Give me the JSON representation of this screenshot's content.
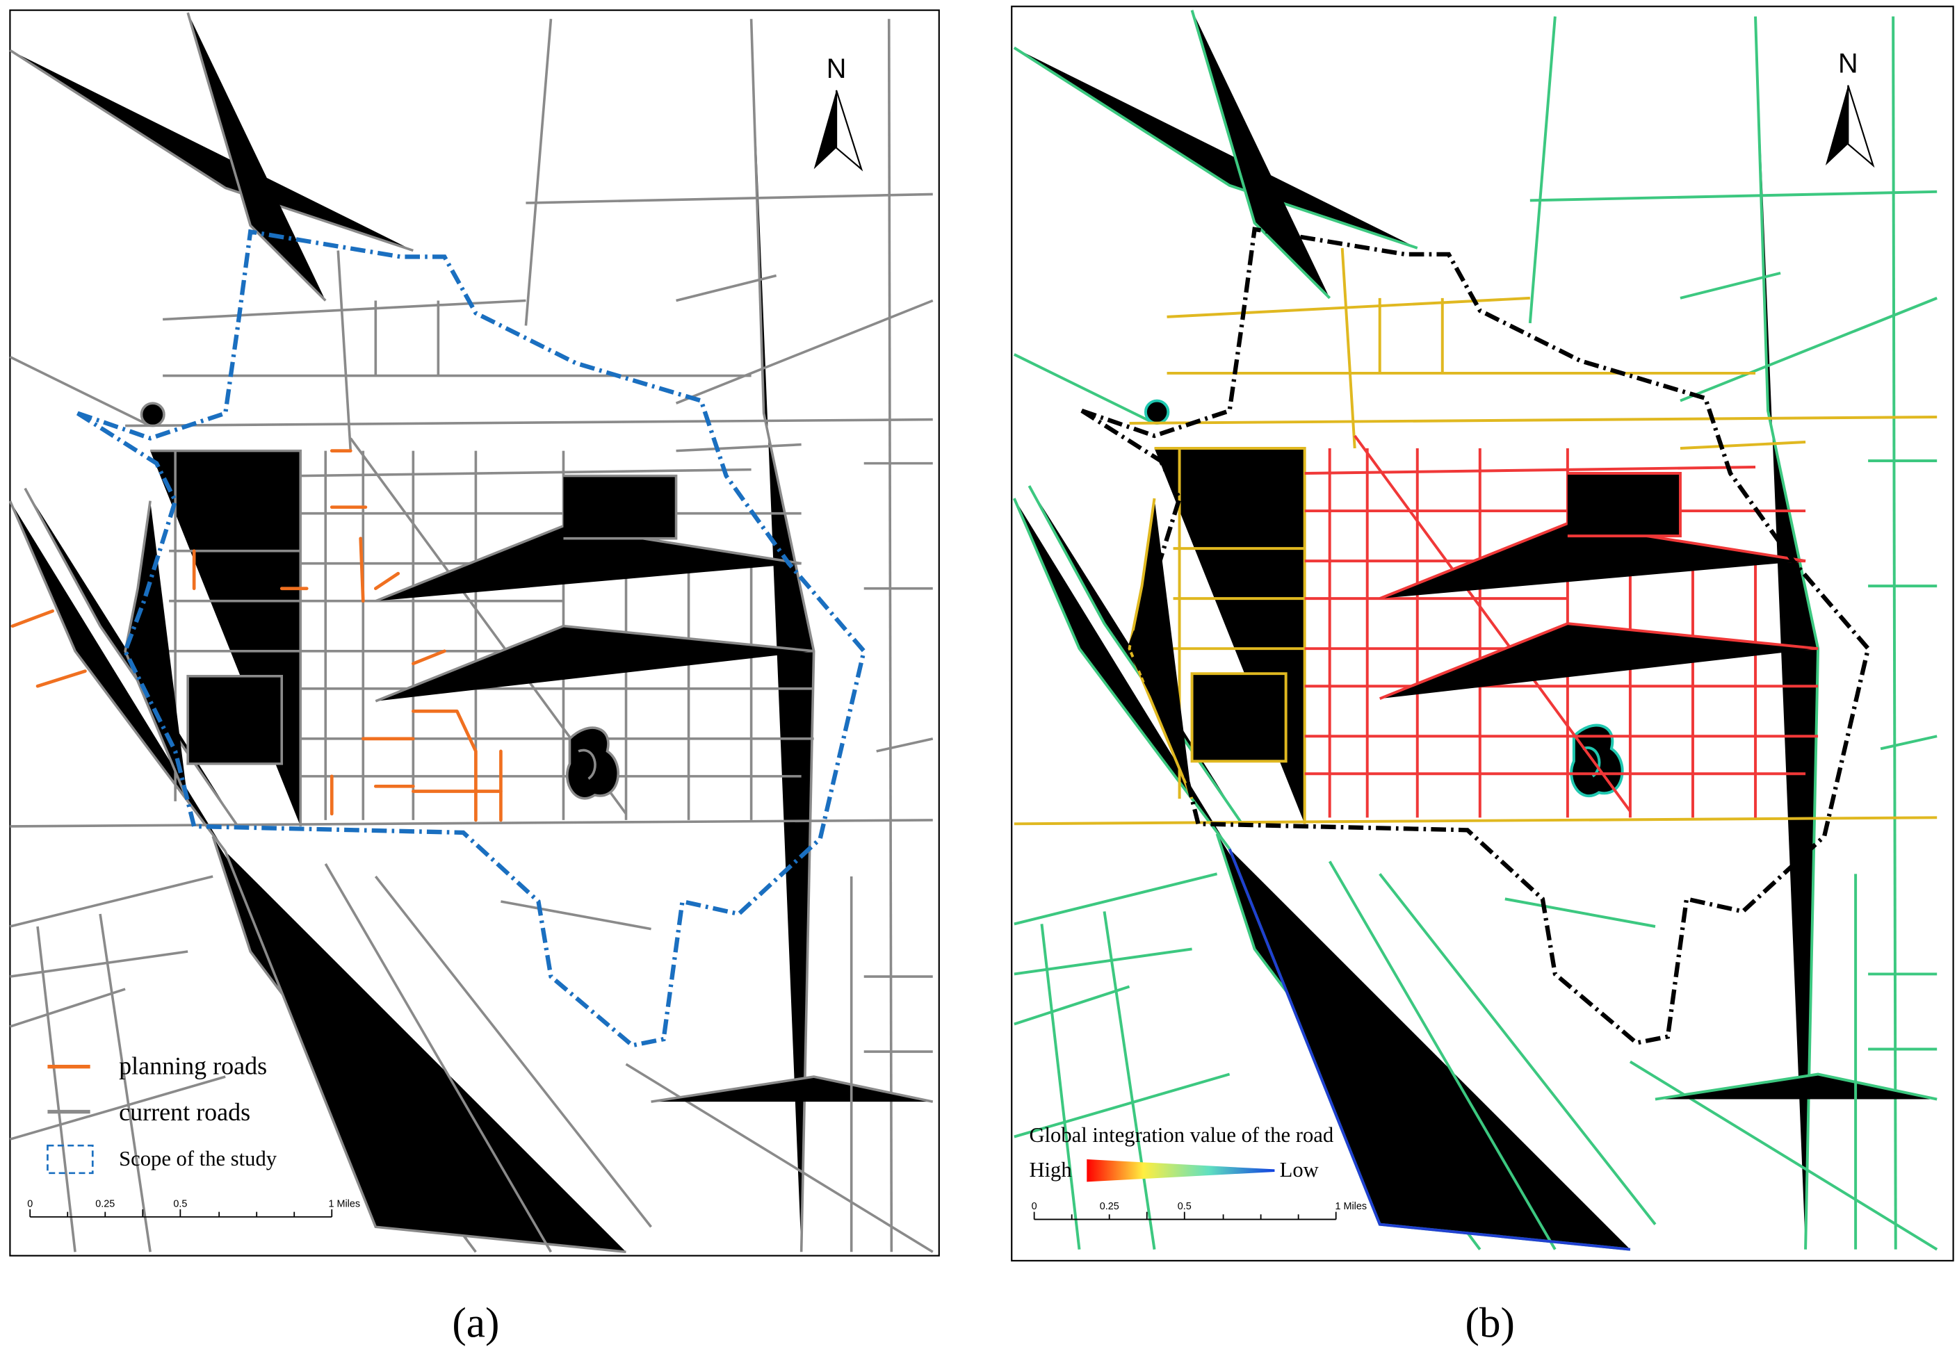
{
  "panels": [
    {
      "north": "N",
      "legend": {
        "items": [
          "planning roads",
          "current roads",
          "Scope of the study"
        ]
      },
      "scale": {
        "labels": [
          "0",
          "0.25",
          "0.5",
          "1 Miles"
        ]
      },
      "caption": "(a)"
    },
    {
      "north": "N",
      "legend": {
        "title": "Global integration value of the road",
        "high": "High",
        "low": "Low"
      },
      "scale": {
        "labels": [
          "0",
          "0.25",
          "0.5",
          "1 Miles"
        ]
      },
      "caption": "(b)"
    }
  ]
}
